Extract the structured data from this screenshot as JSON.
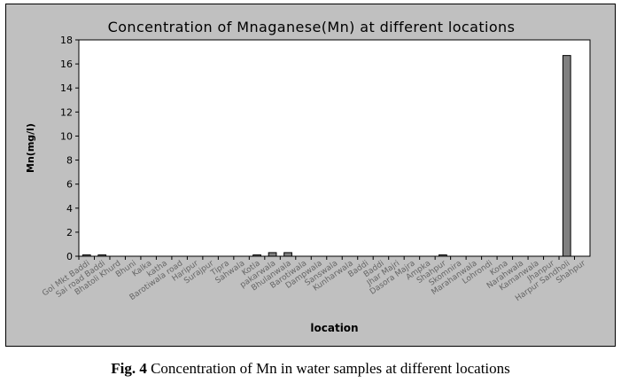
{
  "chart_data": {
    "type": "bar",
    "title": "Concentration of Mnaganese(Mn) at different locations",
    "xlabel": "location",
    "ylabel": "Mn(mg/l)",
    "ylim": [
      0,
      18
    ],
    "yticks": [
      0,
      2,
      4,
      6,
      8,
      10,
      12,
      14,
      16,
      18
    ],
    "grid": false,
    "legend": "none",
    "bar_color": "#808080",
    "plot_background": "#ffffff",
    "chart_background": "#c0c0c0",
    "categories": [
      "Gol Mkt Baddi",
      "Sai road Baddi",
      "Bhatoli Khurd",
      "Bhuni",
      "Kalka",
      "katha",
      "Barotiwala road",
      "Haripur",
      "Surajpur",
      "Tipra",
      "Sahwala",
      "Kotla",
      "pakarwala",
      "Bhulanwala",
      "Barotiwala",
      "Dampwala",
      "Sanswala",
      "Kunharwala",
      "Baddi",
      "Baddi",
      "Jhar Majri",
      "Dasora Majra",
      "Ampka",
      "Shahpur",
      "Skomnira",
      "Marahanwala",
      "Lohrondi",
      "Kona",
      "Narahwala",
      "Kamanwala",
      "Jhanpur",
      "Harpur Sandholi",
      "Shahpur"
    ],
    "tick_labels": [
      "Gol Mkt Baddi",
      "Sai road Baddi",
      "Bhatoli Khurd",
      "Bhuni",
      "Kalka",
      "katha",
      "Barotiwala road",
      "Haripur",
      "Surajpur",
      "Tipra",
      "Sahwala",
      "Kotla",
      "pakarwala",
      "Bhulanwala",
      "Barotiwala",
      "Dampwala",
      "Sanswala",
      "Kunharwala",
      "Baddi",
      "Baddi",
      "Jhar Majri",
      "Dasora Majra",
      "Ampka",
      "Shahpur",
      "Skomnira",
      "Marahanwala",
      "Lohrondi",
      "Kona",
      "Narahwala",
      "Kamanwala",
      "Jhanpur",
      "Harpur Sandholi",
      "Shahpur"
    ],
    "values": [
      0.05,
      0.05,
      0,
      0,
      0,
      0,
      0,
      0,
      0,
      0,
      0,
      0.05,
      0.3,
      0.3,
      0,
      0,
      0,
      0,
      0,
      0,
      0,
      0,
      0,
      0.05,
      0,
      0,
      0,
      0,
      0,
      0,
      0,
      16.7,
      0
    ]
  },
  "caption": {
    "label": "Fig. 4",
    "text": "Concentration of Mn in water samples at different locations"
  }
}
